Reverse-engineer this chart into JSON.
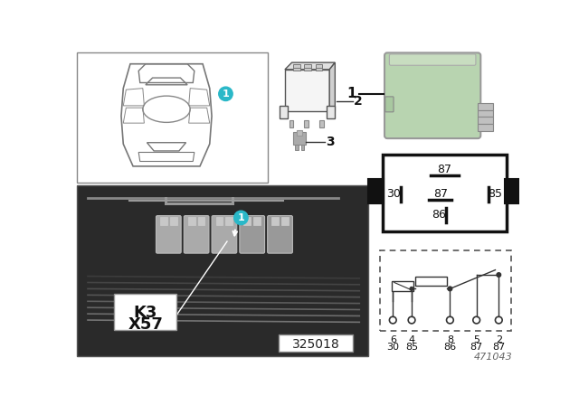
{
  "bg_color": "#ffffff",
  "part_number_left": "325018",
  "part_number_right": "471043",
  "teal_color": "#2ab8c8",
  "relay_green": "#b8d4b0",
  "photo_bg": "#2a2a2a",
  "pin_box_fill": "#ffffff",
  "pin_box_border": "#111111",
  "schema_border": "#555555",
  "car_outline_color": "#666666",
  "connector_sketch_color": "#555555",
  "label_k3": "K3",
  "label_x57": "X57",
  "pin_top_labels": [
    "6",
    "4",
    "8",
    "5",
    "2"
  ],
  "pin_bot_labels": [
    "30",
    "85",
    "86",
    "87",
    "87"
  ],
  "relay_pins_87_top": "87",
  "relay_pins_30": "30",
  "relay_pins_87_mid": "87",
  "relay_pins_85": "85",
  "relay_pins_86": "86"
}
